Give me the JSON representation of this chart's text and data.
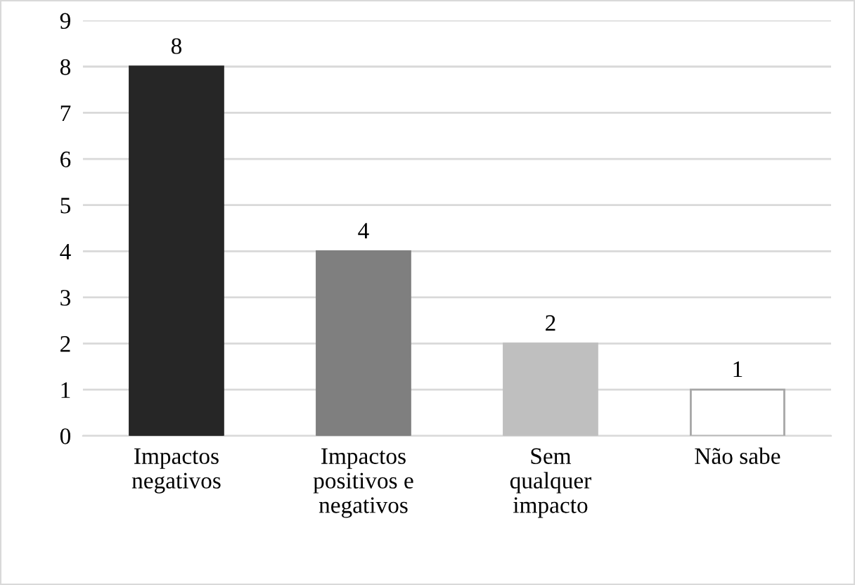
{
  "chart_data": {
    "type": "bar",
    "categories": [
      "Impactos\nnegativos",
      "Impactos\npositivos e\nnegativos",
      "Sem\nqualquer\nimpacto",
      "Não sabe"
    ],
    "values": [
      8,
      4,
      2,
      1
    ],
    "colors": [
      "#262626",
      "#7f7f7f",
      "#bfbfbf",
      "#ffffff"
    ],
    "ylim": [
      0,
      9
    ],
    "yticks": [
      0,
      1,
      2,
      3,
      4,
      5,
      6,
      7,
      8,
      9
    ],
    "grid": "y",
    "data_labels": true
  }
}
